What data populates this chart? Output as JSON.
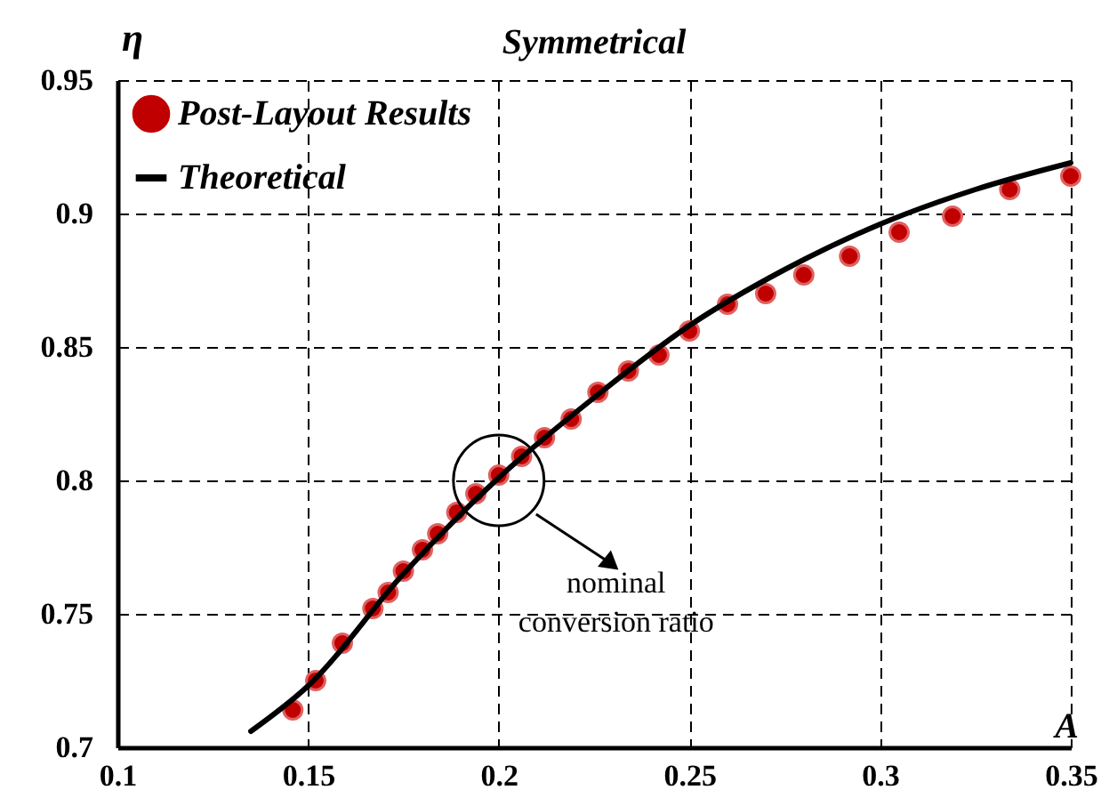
{
  "chart_data": {
    "type": "scatter",
    "title": "Symmetrical",
    "xlabel": "A",
    "ylabel": "η",
    "xlim": [
      0.1,
      0.35
    ],
    "xticks": [
      0.1,
      0.15,
      0.2,
      0.25,
      0.3,
      0.35
    ],
    "ylim": [
      0.7,
      0.95
    ],
    "yticks": [
      0.7,
      0.75,
      0.8,
      0.85,
      0.9,
      0.95
    ],
    "grid": true,
    "legend": "top left",
    "series": [
      {
        "name": "Post-Layout Results",
        "marker": "circle",
        "color": "#c00000",
        "x": [
          0.146,
          0.152,
          0.159,
          0.167,
          0.171,
          0.175,
          0.18,
          0.184,
          0.189,
          0.194,
          0.2,
          0.206,
          0.212,
          0.219,
          0.226,
          0.234,
          0.242,
          0.25,
          0.26,
          0.27,
          0.28,
          0.292,
          0.305,
          0.319,
          0.334,
          0.35
        ],
        "values": [
          0.714,
          0.725,
          0.739,
          0.752,
          0.758,
          0.766,
          0.774,
          0.78,
          0.788,
          0.795,
          0.802,
          0.809,
          0.816,
          0.823,
          0.833,
          0.841,
          0.847,
          0.856,
          0.866,
          0.87,
          0.877,
          0.884,
          0.893,
          0.899,
          0.909,
          0.914
        ]
      },
      {
        "name": "Theoretical",
        "type": "line",
        "color": "#000000",
        "x": [
          0.135,
          0.15,
          0.175,
          0.2,
          0.225,
          0.25,
          0.275,
          0.3,
          0.325,
          0.35
        ],
        "values": [
          0.706,
          0.723,
          0.765,
          0.801,
          0.831,
          0.858,
          0.879,
          0.896,
          0.909,
          0.919
        ]
      }
    ],
    "annotations": [
      {
        "text": "nominal conversion ratio",
        "x": 0.2,
        "y": 0.8
      }
    ]
  }
}
